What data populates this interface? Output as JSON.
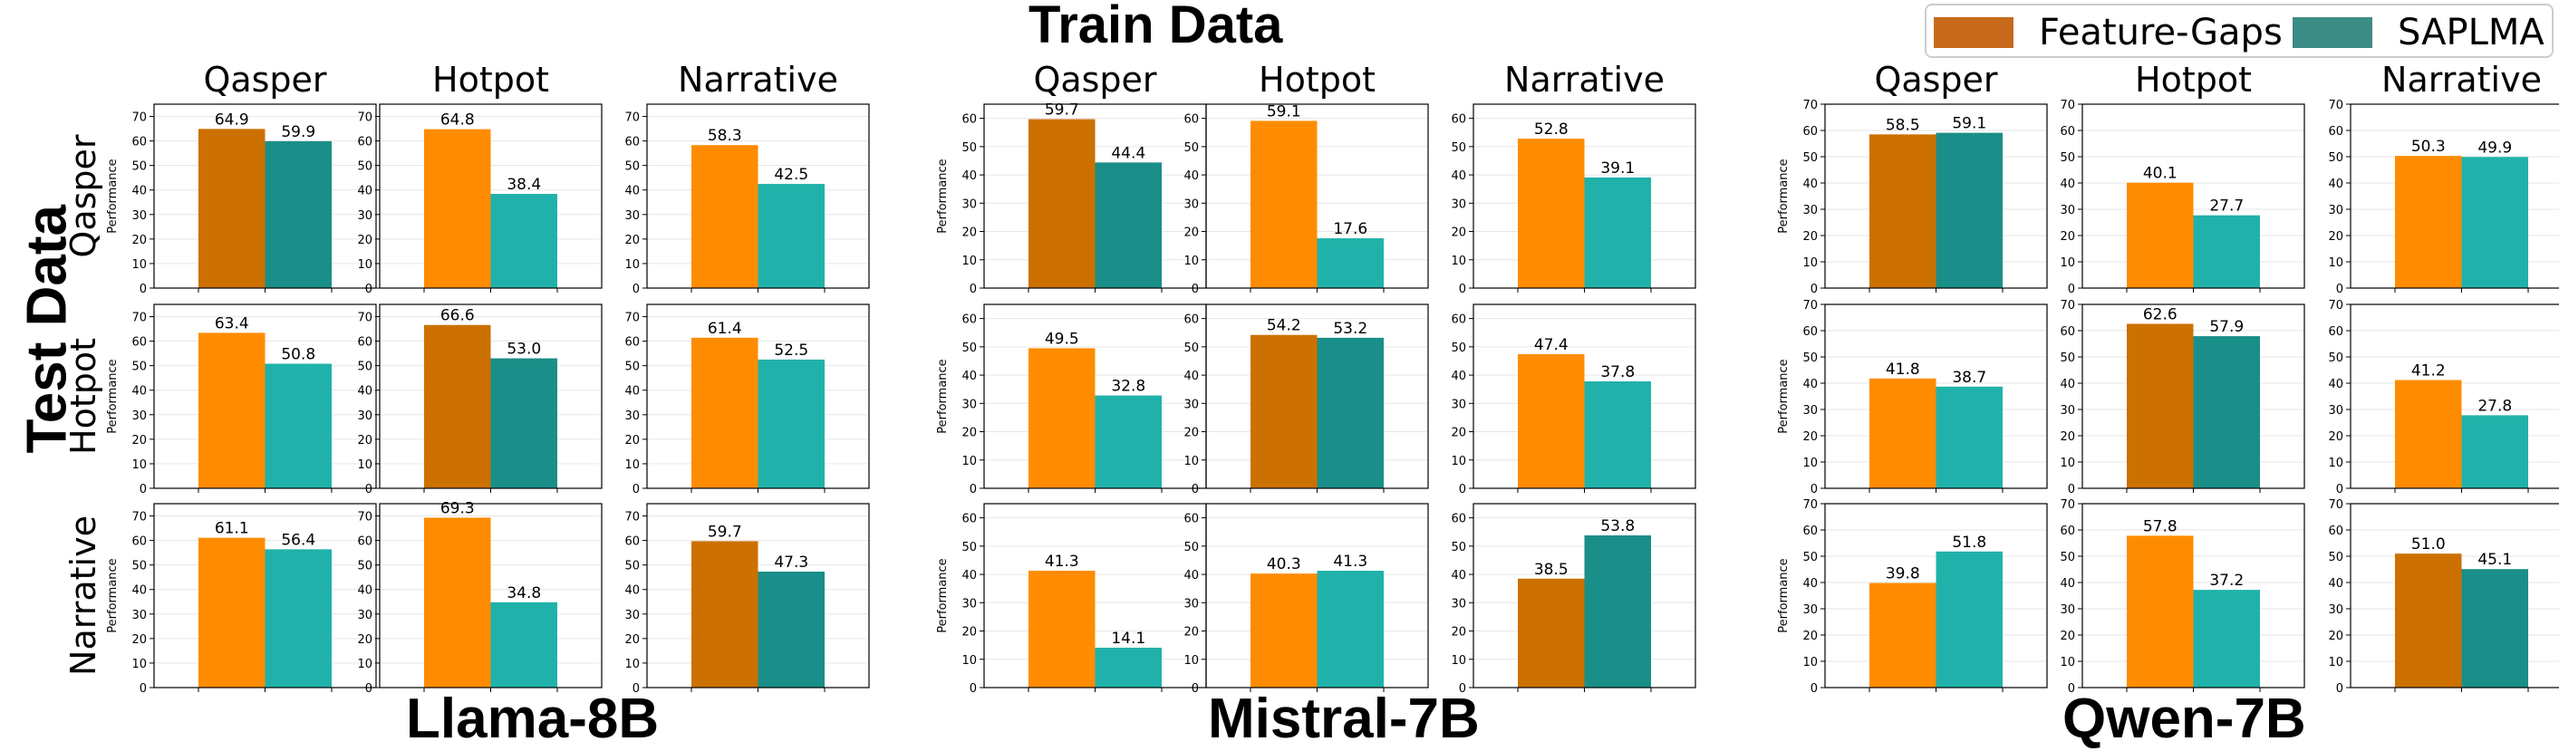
{
  "figure": {
    "train_title": "Train Data",
    "test_title": "Test Data",
    "y_axis_label": "Performance",
    "train_sets": [
      "Qasper",
      "Hotpot",
      "Narrative"
    ],
    "test_sets": [
      "Qasper",
      "Hotpot",
      "Narrative"
    ],
    "models": [
      "Llama-8B",
      "Mistral-7B",
      "Qwen-7B"
    ]
  },
  "legend": {
    "items": [
      {
        "label": "Feature-Gaps",
        "color": "#c86a1c"
      },
      {
        "label": "SAPLMA",
        "color": "#3b8c84"
      }
    ]
  },
  "colors": {
    "fg_normal": "#ff8c00",
    "fg_diag": "#cc7000",
    "sap_normal": "#20b2aa",
    "sap_diag": "#1a8e88"
  },
  "chart_data": {
    "type": "bar",
    "series_names": [
      "Feature-Gaps",
      "SAPLMA"
    ],
    "y_label": "Performance",
    "models": [
      {
        "name": "Llama-8B",
        "ylim": [
          0,
          75
        ],
        "yticks": [
          0,
          10,
          20,
          30,
          40,
          50,
          60,
          70
        ],
        "rows": [
          [
            [
              64.9,
              59.9
            ],
            [
              64.8,
              38.4
            ],
            [
              58.3,
              42.5
            ]
          ],
          [
            [
              63.4,
              50.8
            ],
            [
              66.6,
              53.0
            ],
            [
              61.4,
              52.5
            ]
          ],
          [
            [
              61.1,
              56.4
            ],
            [
              69.3,
              34.8
            ],
            [
              59.7,
              47.3
            ]
          ]
        ]
      },
      {
        "name": "Mistral-7B",
        "ylim": [
          0,
          65
        ],
        "yticks": [
          0,
          10,
          20,
          30,
          40,
          50,
          60
        ],
        "rows": [
          [
            [
              59.7,
              44.4
            ],
            [
              59.1,
              17.6
            ],
            [
              52.8,
              39.1
            ]
          ],
          [
            [
              49.5,
              32.8
            ],
            [
              54.2,
              53.2
            ],
            [
              47.4,
              37.8
            ]
          ],
          [
            [
              41.3,
              14.1
            ],
            [
              40.3,
              41.3
            ],
            [
              38.5,
              53.8
            ]
          ]
        ]
      },
      {
        "name": "Qwen-7B",
        "ylim": [
          0,
          70
        ],
        "yticks": [
          0,
          10,
          20,
          30,
          40,
          50,
          60,
          70
        ],
        "rows": [
          [
            [
              58.5,
              59.1
            ],
            [
              40.1,
              27.7
            ],
            [
              50.3,
              49.9
            ]
          ],
          [
            [
              41.8,
              38.7
            ],
            [
              62.6,
              57.9
            ],
            [
              41.2,
              27.8
            ]
          ],
          [
            [
              39.8,
              51.8
            ],
            [
              57.8,
              37.2
            ],
            [
              51.0,
              45.1
            ]
          ]
        ]
      }
    ]
  }
}
